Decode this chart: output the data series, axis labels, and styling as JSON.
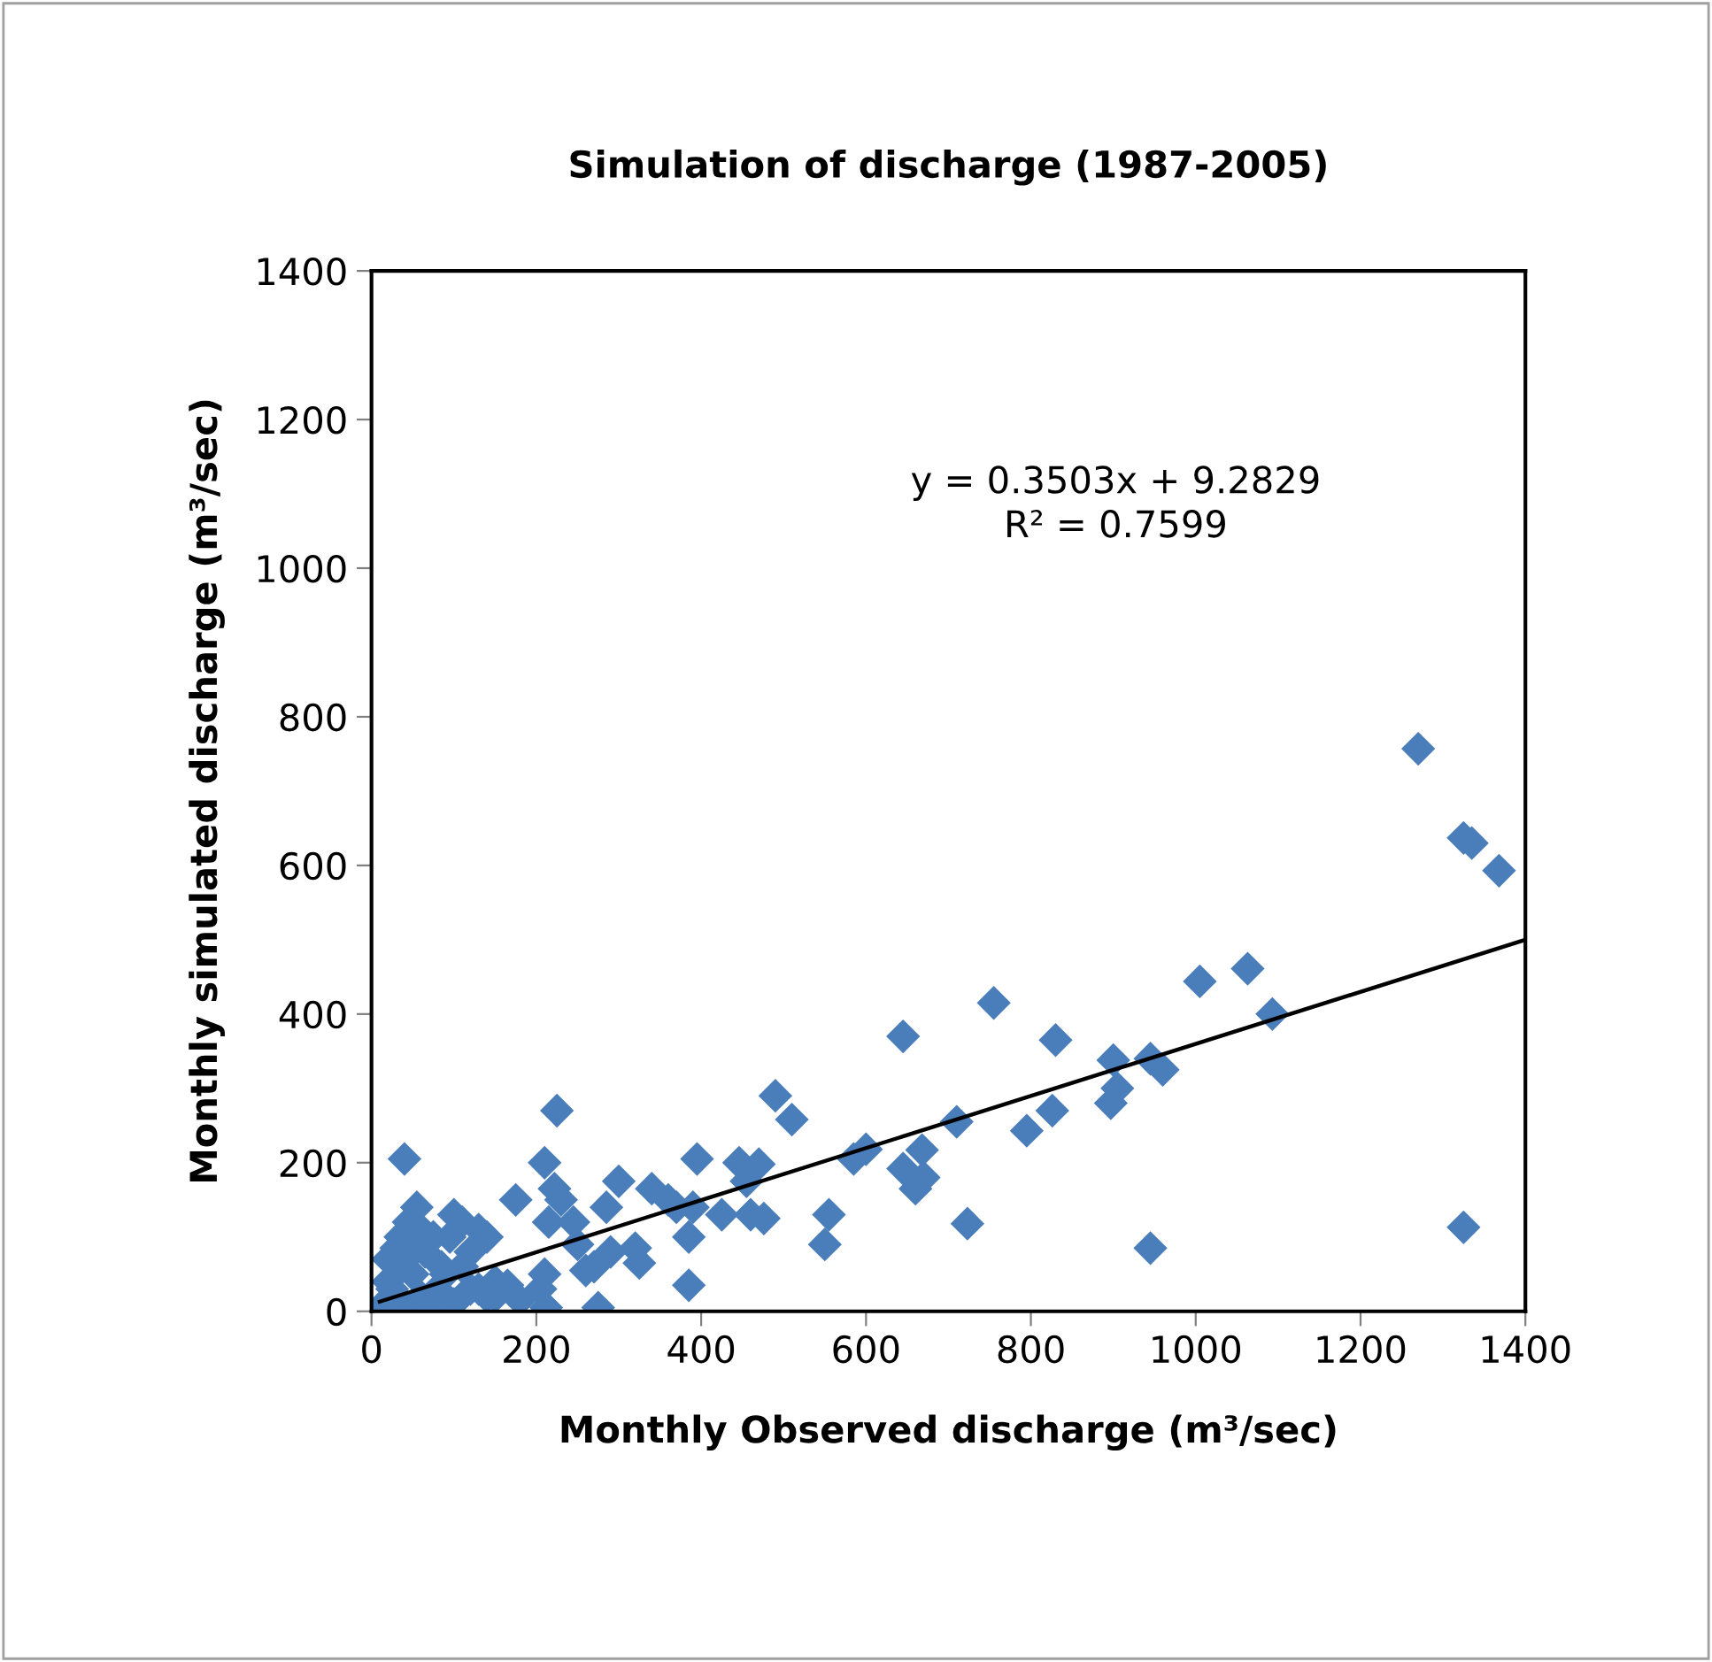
{
  "chart_data": {
    "type": "scatter",
    "title": "Simulation of discharge (1987-2005)",
    "xlabel": "Monthly Observed discharge (m³/sec)",
    "ylabel": "Monthly simulated discharge (m³/sec)",
    "x": [
      1270,
      1325,
      1335,
      1368,
      1325,
      1063,
      1005,
      1093,
      945,
      960,
      900,
      905,
      897,
      945,
      830,
      826,
      795,
      755,
      723,
      710,
      668,
      670,
      660,
      645,
      645,
      600,
      585,
      555,
      550,
      510,
      490,
      476,
      470,
      460,
      446,
      455,
      425,
      395,
      385,
      385,
      390,
      360,
      370,
      340,
      320,
      325,
      300,
      285,
      290,
      270,
      275,
      260,
      250,
      245,
      225,
      222,
      230,
      215,
      210,
      210,
      205,
      212,
      175,
      165,
      150,
      140,
      130,
      120,
      110,
      100,
      95,
      85,
      75,
      65,
      55,
      45,
      40,
      35,
      30,
      25,
      20,
      15,
      50,
      60,
      80,
      100,
      120,
      140,
      40,
      70,
      90,
      110,
      130,
      60,
      30,
      20,
      50,
      150,
      180
    ],
    "series": [
      {
        "color": "#4a7ebb",
        "marker": "diamond",
        "values": [
          757,
          637,
          630,
          593,
          113,
          461,
          444,
          400,
          340,
          325,
          338,
          300,
          280,
          85,
          365,
          270,
          243,
          415,
          118,
          255,
          217,
          180,
          165,
          370,
          192,
          218,
          205,
          130,
          90,
          258,
          290,
          125,
          198,
          130,
          200,
          175,
          130,
          205,
          100,
          35,
          140,
          150,
          140,
          165,
          85,
          65,
          175,
          140,
          80,
          60,
          5,
          55,
          90,
          120,
          270,
          165,
          150,
          120,
          200,
          50,
          30,
          5,
          150,
          35,
          40,
          100,
          110,
          80,
          120,
          130,
          100,
          60,
          100,
          80,
          140,
          120,
          205,
          100,
          60,
          30,
          70,
          10,
          50,
          20,
          30,
          10,
          30,
          20,
          10,
          5,
          50,
          60,
          30,
          110,
          85,
          40,
          80,
          20,
          15
        ]
      },
      {
        "type": "line",
        "color": "#000000",
        "marker": "none",
        "line_style": "solid",
        "x": [
          10,
          1400
        ],
        "values": [
          13,
          500
        ]
      }
    ],
    "annotations": [
      "y = 0.3503x + 9.2829\nR² = 0.7599"
    ],
    "xlim": [
      0,
      1400
    ],
    "ylim": [
      0,
      1400
    ],
    "xticks": [
      0,
      200,
      400,
      600,
      800,
      1000,
      1200,
      1400
    ],
    "yticks": [
      0,
      200,
      400,
      600,
      800,
      1000,
      1200,
      1400
    ],
    "grid": false,
    "legend": false
  }
}
